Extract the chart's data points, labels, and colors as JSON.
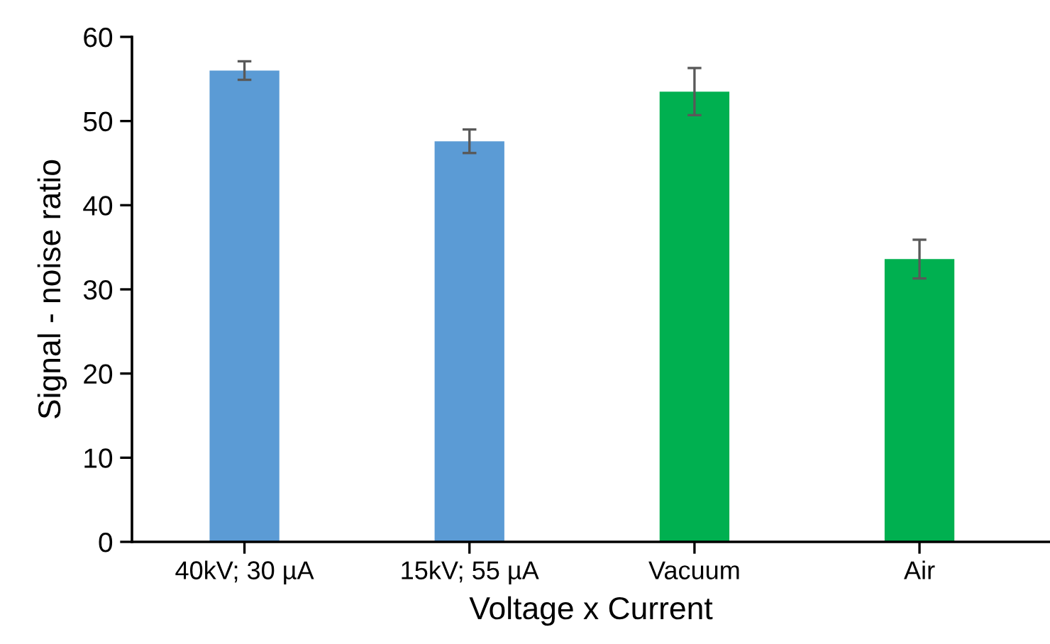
{
  "chart_data": {
    "type": "bar",
    "xlabel": "Voltage x Current",
    "ylabel": "Signal - noise ratio",
    "categories": [
      "40kV; 30 µA",
      "15kV; 55 µA",
      "Vacuum",
      "Air"
    ],
    "values": [
      56.0,
      47.6,
      53.5,
      33.6
    ],
    "errors": [
      1.1,
      1.4,
      2.8,
      2.3
    ],
    "colors": [
      "#5b9bd5",
      "#5b9bd5",
      "#00b050",
      "#00b050"
    ],
    "ylim": [
      0,
      60
    ],
    "yticks": [
      0,
      10,
      20,
      30,
      40,
      50,
      60
    ],
    "grid": false,
    "legend": false
  }
}
